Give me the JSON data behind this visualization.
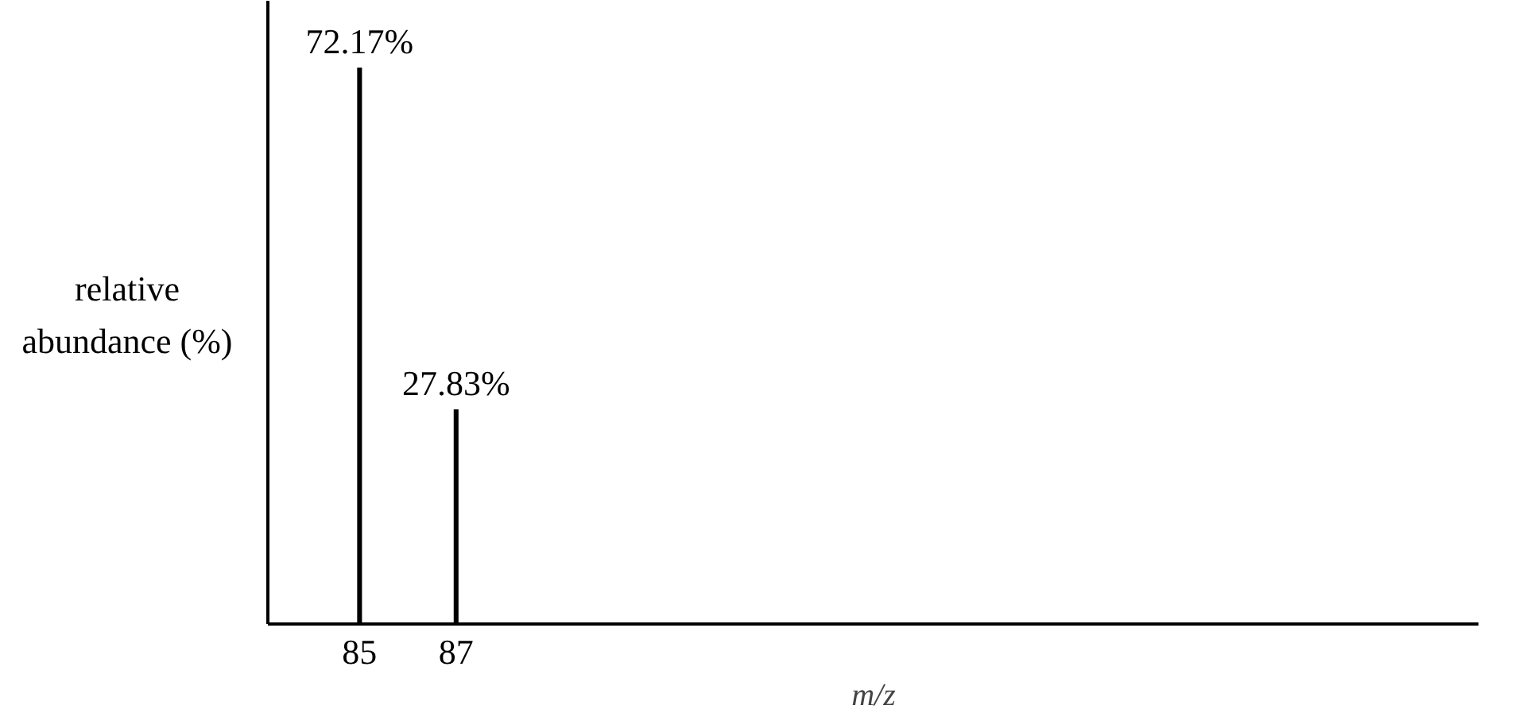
{
  "chart_data": {
    "type": "bar",
    "x": [
      85,
      87
    ],
    "values": [
      72.17,
      27.83
    ],
    "color": "#000000",
    "value_labels": [
      "72.17%",
      "27.83%"
    ],
    "xlabel": "m/z",
    "ylabel": "relative abundance (%)",
    "xlim": [
      83.1,
      108.2
    ],
    "xticks": [
      85,
      87
    ],
    "tick_labels": "x",
    "grid": false
  }
}
